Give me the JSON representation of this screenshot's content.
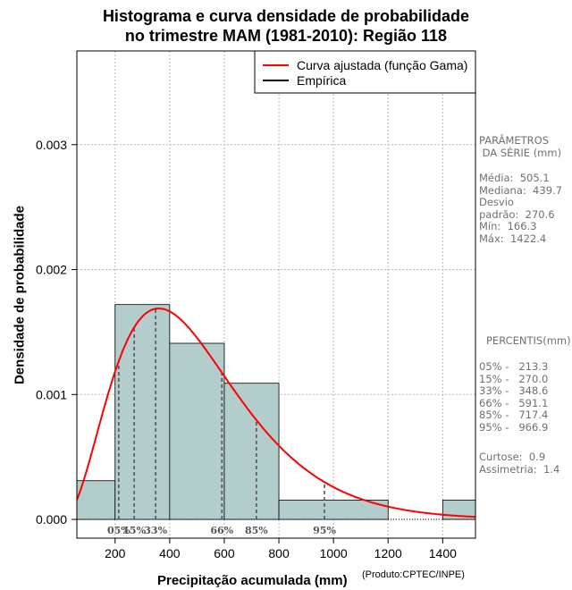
{
  "header": {
    "title_line1": "Histograma e curva densidade de probabilidade",
    "title_line2": "no trimestre MAM (1981-2010): Região 118"
  },
  "chart_data": {
    "type": "bar",
    "title": "Histograma e curva densidade de probabilidade no trimestre MAM (1981-2010): Região 118",
    "xlabel": "Precipitação acumulada (mm)",
    "ylabel": "Densidade de probabilidade",
    "xlim": [
      60,
      1520
    ],
    "ylim": [
      -0.00015,
      0.00375
    ],
    "x_ticks": [
      200,
      400,
      600,
      800,
      1000,
      1200,
      1400
    ],
    "y_ticks": [
      0.0,
      0.001,
      0.002,
      0.003
    ],
    "y_tick_labels": [
      "0.000",
      "0.001",
      "0.002",
      "0.003"
    ],
    "grid": true,
    "histogram": {
      "bins": [
        [
          60,
          200
        ],
        [
          200,
          400
        ],
        [
          400,
          600
        ],
        [
          600,
          800
        ],
        [
          800,
          1200
        ],
        [
          1400,
          1520
        ]
      ],
      "values": [
        0.00031,
        0.00172,
        0.00141,
        0.00109,
        0.000155,
        0.000155
      ],
      "fill": "#b3cccc"
    },
    "gamma_fit": {
      "name": "Curva ajustada (função Gama)",
      "mean": 505.1,
      "sd": 270.6,
      "color": "#ff0000"
    },
    "legend": {
      "position": "top-right",
      "entries": [
        {
          "label": "Curva ajustada (função Gama)",
          "color": "#ff0000"
        },
        {
          "label": "Empírica",
          "color": "#000000"
        }
      ]
    },
    "percentile_markers": [
      {
        "label": "05%",
        "value": 213.3
      },
      {
        "label": "15%",
        "value": 270.0
      },
      {
        "label": "33%",
        "value": 348.6
      },
      {
        "label": "66%",
        "value": 591.1
      },
      {
        "label": "85%",
        "value": 717.4
      },
      {
        "label": "95%",
        "value": 966.9
      }
    ]
  },
  "stats": {
    "parameters_header": "PARÂMETROS\n DA SÉRIE (mm)",
    "parameters": "Média:  505.1\nMediana:  439.7\nDesvio\npadrão:  270.6\nMín:  166.3\nMáx:  1422.4",
    "percentiles_header": "PERCENTIS(mm)",
    "percentiles": "05% -   213.3\n15% -   270.0\n33% -   348.6\n66% -   591.1\n85% -   717.4\n95% -   966.9",
    "moments": "Curtose:  0.9\nAssimetria:  1.4"
  },
  "footer": {
    "credit": "(Produto:CPTEC/INPE)"
  }
}
